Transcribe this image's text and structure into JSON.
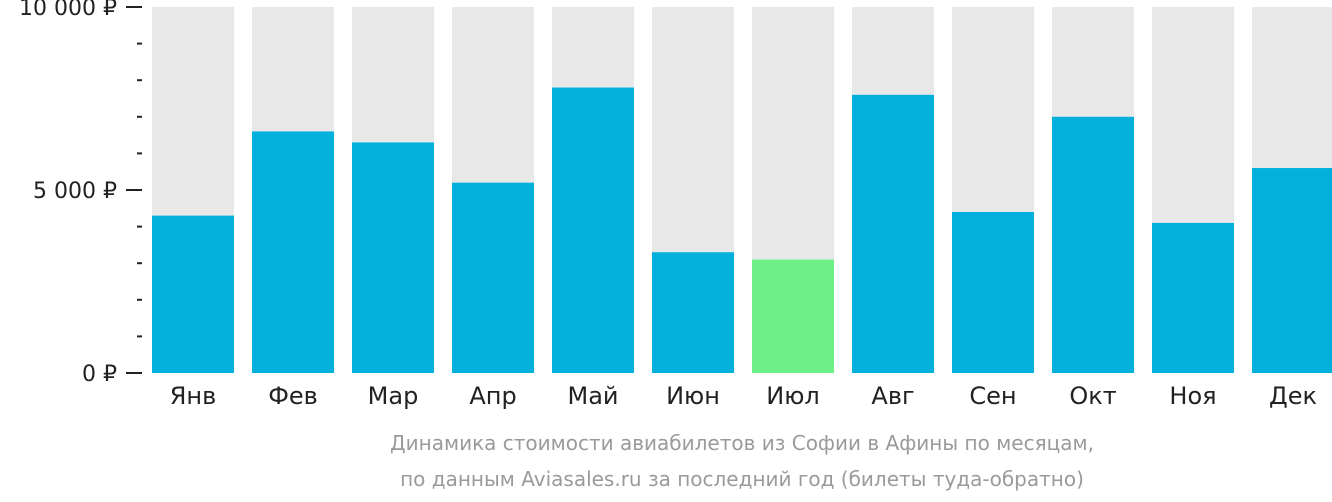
{
  "chart_data": {
    "type": "bar",
    "categories": [
      "Янв",
      "Фев",
      "Мар",
      "Апр",
      "Май",
      "Июн",
      "Июл",
      "Авг",
      "Сен",
      "Окт",
      "Ноя",
      "Дек"
    ],
    "values": [
      4300,
      6600,
      6300,
      5200,
      7800,
      3300,
      3100,
      7600,
      4400,
      7000,
      4100,
      5600
    ],
    "highlight_index": 6,
    "ylim": [
      0,
      10000
    ],
    "y_ticks": [
      {
        "value": 0,
        "label": "0 ₽"
      },
      {
        "value": 5000,
        "label": "5 000 ₽"
      },
      {
        "value": 10000,
        "label": "10 000 ₽"
      }
    ],
    "y_minor_step": 1000,
    "title": "",
    "xlabel": "",
    "ylabel": "",
    "grid": false,
    "colors": {
      "bar": "#03b0dc",
      "highlight": "#6df087",
      "background_bar": "#e8e8e8",
      "axis": "#222222"
    }
  },
  "caption": {
    "line1": "Динамика стоимости авиабилетов из Софии в Афины по месяцам,",
    "line2": "по данным Aviasales.ru за последний год (билеты туда-обратно)"
  }
}
